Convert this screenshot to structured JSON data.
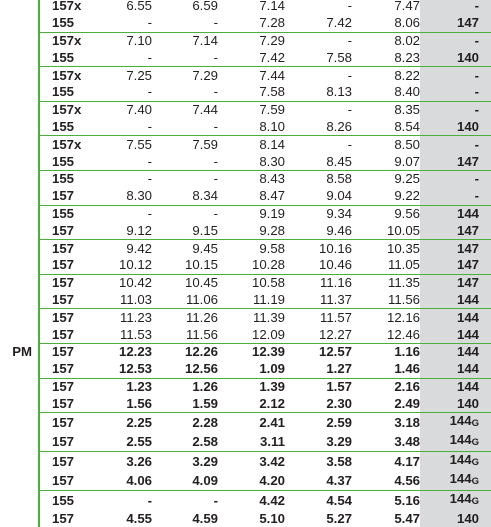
{
  "columns": [
    "pm",
    "route",
    "t1",
    "t2",
    "t3",
    "t4",
    "t5",
    "bus"
  ],
  "rows": [
    {
      "pm": "",
      "route": "157x",
      "t1": "6.55",
      "t2": "6.59",
      "t3": "7.14",
      "t4": "-",
      "t5": "7.47",
      "bus": "-",
      "group_start": true,
      "bold": false
    },
    {
      "pm": "",
      "route": "155",
      "t1": "-",
      "t2": "-",
      "t3": "7.28",
      "t4": "7.42",
      "t5": "8.06",
      "bus": "147",
      "group_start": false,
      "bold": false
    },
    {
      "pm": "",
      "route": "157x",
      "t1": "7.10",
      "t2": "7.14",
      "t3": "7.29",
      "t4": "-",
      "t5": "8.02",
      "bus": "-",
      "group_start": true,
      "bold": false
    },
    {
      "pm": "",
      "route": "155",
      "t1": "-",
      "t2": "-",
      "t3": "7.42",
      "t4": "7.58",
      "t5": "8.23",
      "bus": "140",
      "group_start": false,
      "bold": false
    },
    {
      "pm": "",
      "route": "157x",
      "t1": "7.25",
      "t2": "7.29",
      "t3": "7.44",
      "t4": "-",
      "t5": "8.22",
      "bus": "-",
      "group_start": true,
      "bold": false
    },
    {
      "pm": "",
      "route": "155",
      "t1": "-",
      "t2": "-",
      "t3": "7.58",
      "t4": "8.13",
      "t5": "8.40",
      "bus": "-",
      "group_start": false,
      "bold": false
    },
    {
      "pm": "",
      "route": "157x",
      "t1": "7.40",
      "t2": "7.44",
      "t3": "7.59",
      "t4": "-",
      "t5": "8.35",
      "bus": "-",
      "group_start": true,
      "bold": false
    },
    {
      "pm": "",
      "route": "155",
      "t1": "-",
      "t2": "-",
      "t3": "8.10",
      "t4": "8.26",
      "t5": "8.54",
      "bus": "140",
      "group_start": false,
      "bold": false
    },
    {
      "pm": "",
      "route": "157x",
      "t1": "7.55",
      "t2": "7.59",
      "t3": "8.14",
      "t4": "-",
      "t5": "8.50",
      "bus": "-",
      "group_start": true,
      "bold": false
    },
    {
      "pm": "",
      "route": "155",
      "t1": "-",
      "t2": "-",
      "t3": "8.30",
      "t4": "8.45",
      "t5": "9.07",
      "bus": "147",
      "group_start": false,
      "bold": false
    },
    {
      "pm": "",
      "route": "155",
      "t1": "-",
      "t2": "-",
      "t3": "8.43",
      "t4": "8.58",
      "t5": "9.25",
      "bus": "-",
      "group_start": true,
      "bold": false
    },
    {
      "pm": "",
      "route": "157",
      "t1": "8.30",
      "t2": "8.34",
      "t3": "8.47",
      "t4": "9.04",
      "t5": "9.22",
      "bus": "-",
      "group_start": false,
      "bold": false
    },
    {
      "pm": "",
      "route": "155",
      "t1": "-",
      "t2": "-",
      "t3": "9.19",
      "t4": "9.34",
      "t5": "9.56",
      "bus": "144",
      "group_start": true,
      "bold": false
    },
    {
      "pm": "",
      "route": "157",
      "t1": "9.12",
      "t2": "9.15",
      "t3": "9.28",
      "t4": "9.46",
      "t5": "10.05",
      "bus": "147",
      "group_start": false,
      "bold": false
    },
    {
      "pm": "",
      "route": "157",
      "t1": "9.42",
      "t2": "9.45",
      "t3": "9.58",
      "t4": "10.16",
      "t5": "10.35",
      "bus": "147",
      "group_start": true,
      "bold": false
    },
    {
      "pm": "",
      "route": "157",
      "t1": "10.12",
      "t2": "10.15",
      "t3": "10.28",
      "t4": "10.46",
      "t5": "11.05",
      "bus": "147",
      "group_start": false,
      "bold": false
    },
    {
      "pm": "",
      "route": "157",
      "t1": "10.42",
      "t2": "10.45",
      "t3": "10.58",
      "t4": "11.16",
      "t5": "11.35",
      "bus": "147",
      "group_start": true,
      "bold": false
    },
    {
      "pm": "",
      "route": "157",
      "t1": "11.03",
      "t2": "11.06",
      "t3": "11.19",
      "t4": "11.37",
      "t5": "11.56",
      "bus": "144",
      "group_start": false,
      "bold": false
    },
    {
      "pm": "",
      "route": "157",
      "t1": "11.23",
      "t2": "11.26",
      "t3": "11.39",
      "t4": "11.57",
      "t5": "12.16",
      "bus": "144",
      "group_start": true,
      "bold": false
    },
    {
      "pm": "",
      "route": "157",
      "t1": "11.53",
      "t2": "11.56",
      "t3": "12.09",
      "t4": "12.27",
      "t5": "12.46",
      "bus": "144",
      "group_start": false,
      "bold": false
    },
    {
      "pm": "PM",
      "route": "157",
      "t1": "12.23",
      "t2": "12.26",
      "t3": "12.39",
      "t4": "12.57",
      "t5": "1.16",
      "bus": "144",
      "group_start": true,
      "bold": true
    },
    {
      "pm": "",
      "route": "157",
      "t1": "12.53",
      "t2": "12.56",
      "t3": "1.09",
      "t4": "1.27",
      "t5": "1.46",
      "bus": "144",
      "group_start": false,
      "bold": true
    },
    {
      "pm": "",
      "route": "157",
      "t1": "1.23",
      "t2": "1.26",
      "t3": "1.39",
      "t4": "1.57",
      "t5": "2.16",
      "bus": "144",
      "group_start": true,
      "bold": true
    },
    {
      "pm": "",
      "route": "157",
      "t1": "1.56",
      "t2": "1.59",
      "t3": "2.12",
      "t4": "2.30",
      "t5": "2.49",
      "bus": "140",
      "group_start": false,
      "bold": true
    },
    {
      "pm": "",
      "route": "157",
      "t1": "2.25",
      "t2": "2.28",
      "t3": "2.41",
      "t4": "2.59",
      "t5": "3.18",
      "bus": "144G",
      "group_start": true,
      "bold": true
    },
    {
      "pm": "",
      "route": "157",
      "t1": "2.55",
      "t2": "2.58",
      "t3": "3.11",
      "t4": "3.29",
      "t5": "3.48",
      "bus": "144G",
      "group_start": false,
      "bold": true
    },
    {
      "pm": "",
      "route": "157",
      "t1": "3.26",
      "t2": "3.29",
      "t3": "3.42",
      "t4": "3.58",
      "t5": "4.17",
      "bus": "144G",
      "group_start": true,
      "bold": true
    },
    {
      "pm": "",
      "route": "157",
      "t1": "4.06",
      "t2": "4.09",
      "t3": "4.20",
      "t4": "4.37",
      "t5": "4.56",
      "bus": "144G",
      "group_start": false,
      "bold": true
    },
    {
      "pm": "",
      "route": "155",
      "t1": "-",
      "t2": "-",
      "t3": "4.42",
      "t4": "4.54",
      "t5": "5.16",
      "bus": "144G",
      "group_start": true,
      "bold": true
    },
    {
      "pm": "",
      "route": "157",
      "t1": "4.55",
      "t2": "4.59",
      "t3": "5.10",
      "t4": "5.27",
      "t5": "5.47",
      "bus": "140",
      "group_start": false,
      "bold": true
    }
  ],
  "colors": {
    "rule": "#4caf3c",
    "shade": "#d9dadb",
    "text": "#231f20"
  }
}
